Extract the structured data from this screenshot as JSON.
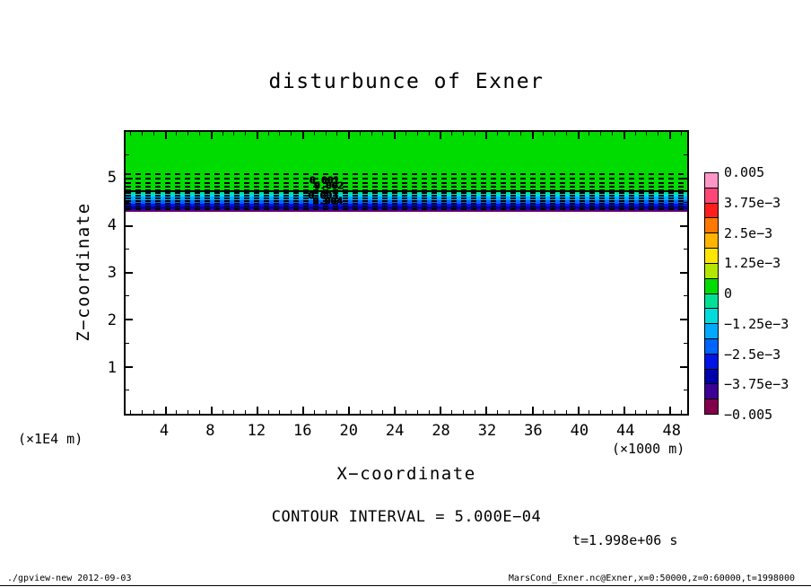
{
  "page": {
    "title": "disturbunce of Exner",
    "contour_note": "CONTOUR INTERVAL = 5.000E−04",
    "time_label": "t=1.998e+06 s",
    "footer_left": "./gpview-new  2012-09-03",
    "footer_right": "MarsCond_Exner.nc@Exner,x=0:50000,z=0:60000,t=1998000"
  },
  "x_axis": {
    "label": "X−coordinate",
    "unit": "(×1000 m)"
  },
  "y_axis": {
    "label": "Z−coordinate",
    "unit": "(×1E4 m)"
  },
  "colorbar": {
    "tick_labels": [
      "0.005",
      "3.75e−3",
      "2.5e−3",
      "1.25e−3",
      "0",
      "−1.25e−3",
      "−2.5e−3",
      "−3.75e−3",
      "−0.005"
    ],
    "colors_top_to_bottom": [
      "#ff96c8",
      "#ff4678",
      "#ff1e1e",
      "#ff7800",
      "#ffb400",
      "#ffe600",
      "#b4e600",
      "#00dc00",
      "#00e096",
      "#00dcdc",
      "#00aaff",
      "#0064ff",
      "#0014e6",
      "#0000aa",
      "#3c0096",
      "#82004b"
    ]
  },
  "chart_data": {
    "type": "heatmap",
    "title": "disturbunce of Exner",
    "xlabel": "X−coordinate",
    "ylabel": "Z−coordinate",
    "x_unit_factor": "(×1000 m)",
    "y_unit_factor": "(×1E4 m)",
    "xlim": [
      0.5,
      49.5
    ],
    "ylim": [
      0,
      6
    ],
    "x_ticks": [
      4,
      8,
      12,
      16,
      20,
      24,
      28,
      32,
      36,
      40,
      44,
      48
    ],
    "y_ticks": [
      1,
      2,
      3,
      4,
      5
    ],
    "contour_interval": 0.0005,
    "colorbar_ticks": [
      0.005,
      0.00375,
      0.0025,
      0.00125,
      0,
      -0.00125,
      -0.0025,
      -0.00375,
      -0.005
    ],
    "bands": [
      {
        "z_from": 4.75,
        "z_to": 6.0,
        "color": "#00dc00",
        "approx_value": 0.0003
      },
      {
        "z_from": 4.69,
        "z_to": 4.75,
        "color": "#00e096",
        "approx_value": -0.0003
      },
      {
        "z_from": 4.62,
        "z_to": 4.69,
        "color": "#00dcdc",
        "approx_value": -0.0009
      },
      {
        "z_from": 4.55,
        "z_to": 4.62,
        "color": "#00aaff",
        "approx_value": -0.0016
      },
      {
        "z_from": 4.48,
        "z_to": 4.55,
        "color": "#0064ff",
        "approx_value": -0.0022
      },
      {
        "z_from": 4.42,
        "z_to": 4.48,
        "color": "#0014e6",
        "approx_value": -0.0028
      },
      {
        "z_from": 4.36,
        "z_to": 4.42,
        "color": "#0000aa",
        "approx_value": -0.0034
      },
      {
        "z_from": 4.325,
        "z_to": 4.36,
        "color": "#3c0096",
        "approx_value": -0.0041
      },
      {
        "z_from": 4.29,
        "z_to": 4.325,
        "color": "#82004b",
        "approx_value": -0.0047
      },
      {
        "z_from": 0.0,
        "z_to": 4.29,
        "color": "#ffffff",
        "approx_value": null
      }
    ],
    "zero_contour_z": 4.76,
    "contour_lines_z": [
      5.12,
      5.02,
      4.93,
      4.85,
      4.78,
      4.715,
      4.655,
      4.6,
      4.545,
      4.49,
      4.435,
      4.38
    ],
    "contour_labels": [
      {
        "text": "0.001",
        "x": 17.8,
        "z": 4.97
      },
      {
        "text": "0.002",
        "x": 18.2,
        "z": 4.85
      },
      {
        "text": "0.003",
        "x": 17.7,
        "z": 4.65
      },
      {
        "text": "0.004",
        "x": 18.1,
        "z": 4.53
      }
    ]
  }
}
